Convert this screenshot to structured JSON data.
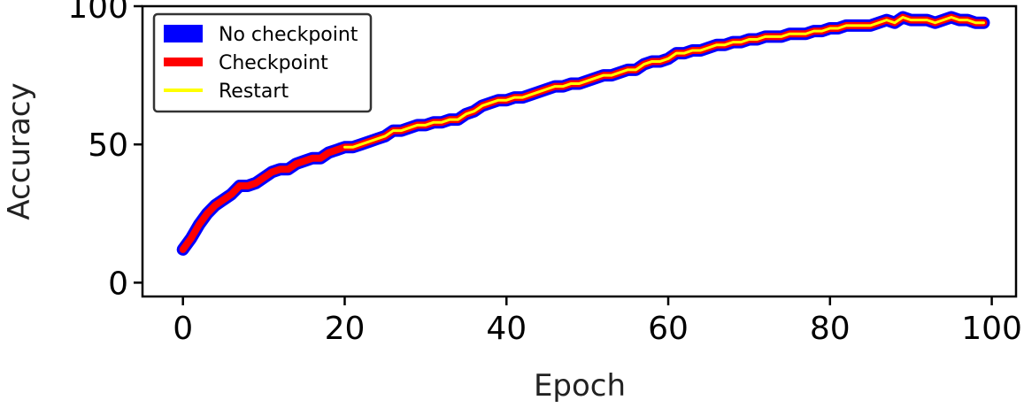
{
  "chart_data": {
    "type": "line",
    "title": "",
    "xlabel": "Epoch",
    "ylabel": "Accuracy",
    "xlim": [
      -5,
      103
    ],
    "ylim": [
      -5,
      100
    ],
    "xticks": [
      0,
      20,
      40,
      60,
      80,
      100
    ],
    "yticks": [
      0,
      50,
      100
    ],
    "grid": false,
    "legend_position": "top-left",
    "series": [
      {
        "name": "No checkpoint",
        "color": "#0000ff",
        "x": [
          0,
          1,
          2,
          3,
          4,
          5,
          6,
          7,
          8,
          9,
          10,
          11,
          12,
          13,
          14,
          15,
          16,
          17,
          18,
          19,
          20,
          21,
          22,
          23,
          24,
          25,
          26,
          27,
          28,
          29,
          30,
          31,
          32,
          33,
          34,
          35,
          36,
          37,
          38,
          39,
          40,
          41,
          42,
          43,
          44,
          45,
          46,
          47,
          48,
          49,
          50,
          51,
          52,
          53,
          54,
          55,
          56,
          57,
          58,
          59,
          60,
          61,
          62,
          63,
          64,
          65,
          66,
          67,
          68,
          69,
          70,
          71,
          72,
          73,
          74,
          75,
          76,
          77,
          78,
          79,
          80,
          81,
          82,
          83,
          84,
          85,
          86,
          87,
          88,
          89,
          90,
          91,
          92,
          93,
          94,
          95,
          96,
          97,
          98,
          99
        ],
        "values": [
          12,
          16,
          21,
          25,
          28,
          30,
          32,
          35,
          35,
          36,
          38,
          40,
          41,
          41,
          43,
          44,
          45,
          45,
          47,
          48,
          49,
          49,
          50,
          51,
          52,
          53,
          55,
          55,
          56,
          57,
          57,
          58,
          58,
          59,
          59,
          61,
          62,
          64,
          65,
          66,
          66,
          67,
          67,
          68,
          69,
          70,
          71,
          71,
          72,
          72,
          73,
          74,
          75,
          75,
          76,
          77,
          77,
          79,
          80,
          80,
          81,
          83,
          83,
          84,
          84,
          85,
          86,
          86,
          87,
          87,
          88,
          88,
          89,
          89,
          89,
          90,
          90,
          90,
          91,
          91,
          92,
          92,
          93,
          93,
          93,
          93,
          94,
          95,
          94,
          96,
          95,
          95,
          95,
          94,
          95,
          96,
          95,
          95,
          94,
          94
        ]
      },
      {
        "name": "Checkpoint",
        "color": "#ff0000",
        "x": [
          0,
          1,
          2,
          3,
          4,
          5,
          6,
          7,
          8,
          9,
          10,
          11,
          12,
          13,
          14,
          15,
          16,
          17,
          18,
          19,
          20,
          21,
          22,
          23,
          24,
          25,
          26,
          27,
          28,
          29,
          30,
          31,
          32,
          33,
          34,
          35,
          36,
          37,
          38,
          39,
          40,
          41,
          42,
          43,
          44,
          45,
          46,
          47,
          48,
          49,
          50,
          51,
          52,
          53,
          54,
          55,
          56,
          57,
          58,
          59,
          60,
          61,
          62,
          63,
          64,
          65,
          66,
          67,
          68,
          69,
          70,
          71,
          72,
          73,
          74,
          75,
          76,
          77,
          78,
          79,
          80,
          81,
          82,
          83,
          84,
          85,
          86,
          87,
          88,
          89,
          90,
          91,
          92,
          93,
          94,
          95,
          96,
          97,
          98,
          99
        ],
        "values": [
          12,
          16,
          21,
          25,
          28,
          30,
          32,
          35,
          35,
          36,
          38,
          40,
          41,
          41,
          43,
          44,
          45,
          45,
          47,
          48,
          49,
          49,
          50,
          51,
          52,
          53,
          55,
          55,
          56,
          57,
          57,
          58,
          58,
          59,
          59,
          61,
          62,
          64,
          65,
          66,
          66,
          67,
          67,
          68,
          69,
          70,
          71,
          71,
          72,
          72,
          73,
          74,
          75,
          75,
          76,
          77,
          77,
          79,
          80,
          80,
          81,
          83,
          83,
          84,
          84,
          85,
          86,
          86,
          87,
          87,
          88,
          88,
          89,
          89,
          89,
          90,
          90,
          90,
          91,
          91,
          92,
          92,
          93,
          93,
          93,
          93,
          94,
          95,
          94,
          96,
          95,
          95,
          95,
          94,
          95,
          96,
          95,
          95,
          94,
          94
        ]
      },
      {
        "name": "Restart",
        "color": "#ffff00",
        "x": [
          20,
          21,
          22,
          23,
          24,
          25,
          26,
          27,
          28,
          29,
          30,
          31,
          32,
          33,
          34,
          35,
          36,
          37,
          38,
          39,
          40,
          41,
          42,
          43,
          44,
          45,
          46,
          47,
          48,
          49,
          50,
          51,
          52,
          53,
          54,
          55,
          56,
          57,
          58,
          59,
          60,
          61,
          62,
          63,
          64,
          65,
          66,
          67,
          68,
          69,
          70,
          71,
          72,
          73,
          74,
          75,
          76,
          77,
          78,
          79,
          80,
          81,
          82,
          83,
          84,
          85,
          86,
          87,
          88,
          89,
          90,
          91,
          92,
          93,
          94,
          95,
          96,
          97,
          98,
          99
        ],
        "values": [
          49,
          49,
          50,
          51,
          52,
          53,
          55,
          55,
          56,
          57,
          57,
          58,
          58,
          59,
          59,
          61,
          62,
          64,
          65,
          66,
          66,
          67,
          67,
          68,
          69,
          70,
          71,
          71,
          72,
          72,
          73,
          74,
          75,
          75,
          76,
          77,
          77,
          79,
          80,
          80,
          81,
          83,
          83,
          84,
          84,
          85,
          86,
          86,
          87,
          87,
          88,
          88,
          89,
          89,
          89,
          90,
          90,
          90,
          91,
          91,
          92,
          92,
          93,
          93,
          93,
          93,
          94,
          95,
          94,
          96,
          95,
          95,
          95,
          94,
          95,
          96,
          95,
          95,
          94,
          94
        ]
      }
    ]
  }
}
